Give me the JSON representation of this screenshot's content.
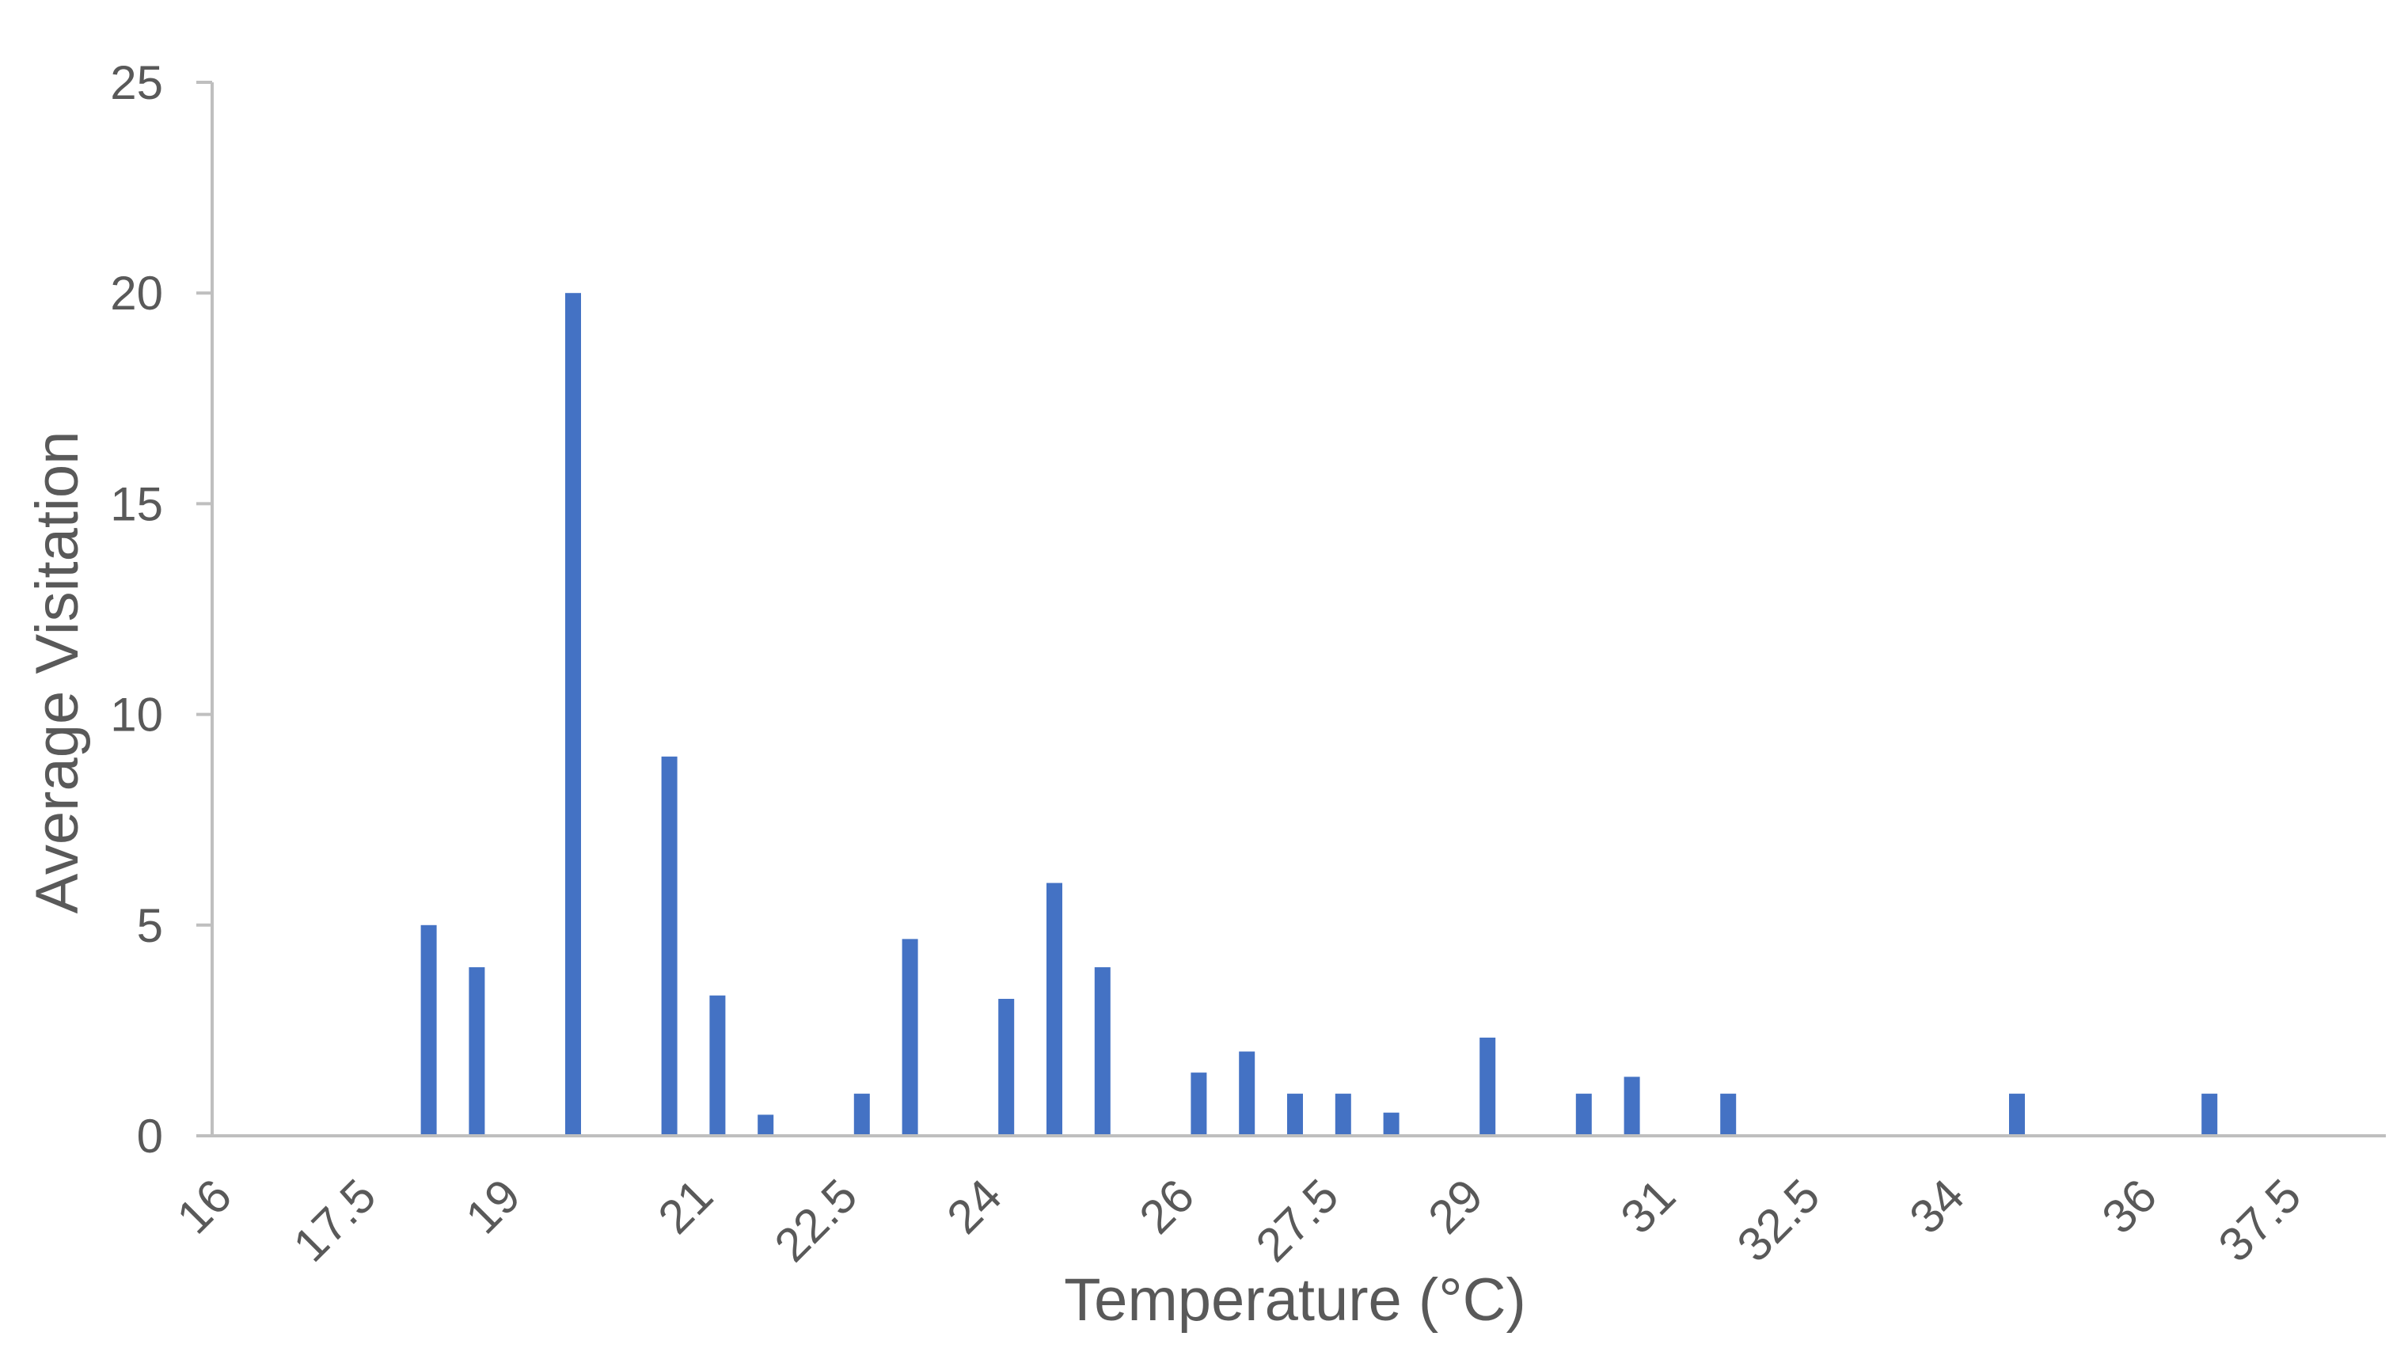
{
  "chart_data": {
    "type": "bar",
    "xlabel": "Temperature (°C)",
    "ylabel": "Average Visitation",
    "ylim": [
      0,
      25
    ],
    "yticks": [
      "0",
      "5",
      "10",
      "15",
      "20",
      "25"
    ],
    "xlim": [
      16,
      38.5
    ],
    "xticks": [
      "16",
      "17.5",
      "19",
      "21",
      "22.5",
      "24",
      "26",
      "27.5",
      "29",
      "31",
      "32.5",
      "34",
      "36",
      "37.5"
    ],
    "grid": false,
    "legend": "none",
    "bar_color": "#4472C4",
    "axis_color": "#BFBFBF",
    "text_color": "#595959",
    "x": [
      18.25,
      18.75,
      19.75,
      20.75,
      21.25,
      21.75,
      22.75,
      23.25,
      24.25,
      24.75,
      25.25,
      26.25,
      26.75,
      27.25,
      27.75,
      28.25,
      29.25,
      30.25,
      30.75,
      31.75,
      34.75,
      36.75
    ],
    "values": [
      5,
      4,
      20,
      9,
      3.33,
      0.5,
      1,
      4.67,
      3.25,
      6,
      4,
      1.5,
      2,
      1,
      1,
      0.55,
      2.33,
      1,
      1.4,
      1,
      1,
      1
    ]
  }
}
